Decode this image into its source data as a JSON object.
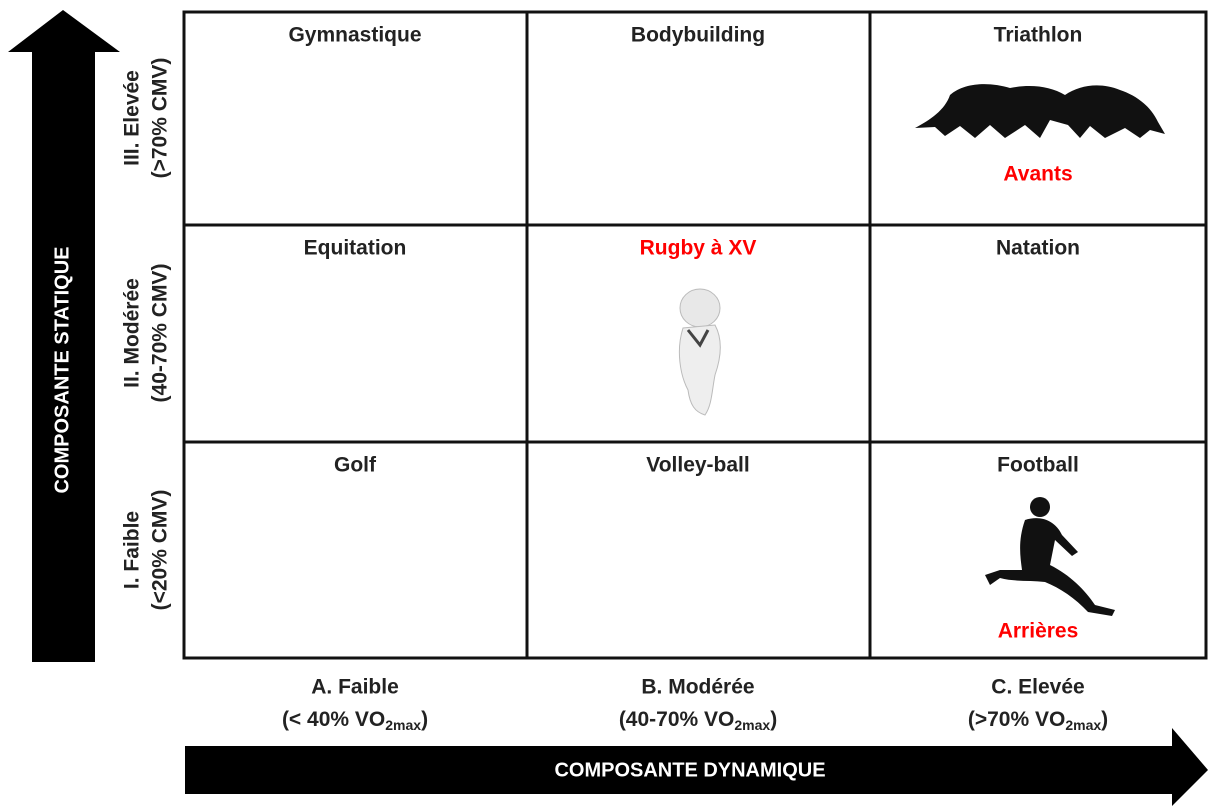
{
  "y_axis": {
    "title": "COMPOSANTE STATIQUE",
    "rows": [
      {
        "level": "III. Elevée",
        "range": "(>70% CMV)"
      },
      {
        "level": "II. Modérée",
        "range": "(40-70% CMV)"
      },
      {
        "level": "I. Faible",
        "range": "(<20% CMV)"
      }
    ]
  },
  "x_axis": {
    "title": "COMPOSANTE DYNAMIQUE",
    "columns": [
      {
        "level": "A. Faible",
        "range_start": "(< 40% VO",
        "range_sub": "2max",
        "range_end": ")"
      },
      {
        "level": "B. Modérée",
        "range_start": "(40-70% VO",
        "range_sub": "2max",
        "range_end": ")"
      },
      {
        "level": "C. Elevée",
        "range_start": "(>70% VO",
        "range_sub": "2max",
        "range_end": ")"
      }
    ]
  },
  "grid": {
    "rows": [
      [
        {
          "label": "Gymnastique"
        },
        {
          "label": "Bodybuilding"
        },
        {
          "label": "Triathlon",
          "note": "Avants"
        }
      ],
      [
        {
          "label": "Equitation"
        },
        {
          "label": "Rugby à XV",
          "color": "#ff0000"
        },
        {
          "label": "Natation"
        }
      ],
      [
        {
          "label": "Golf"
        },
        {
          "label": "Volley-ball"
        },
        {
          "label": "Football",
          "note": "Arrières"
        }
      ]
    ]
  }
}
